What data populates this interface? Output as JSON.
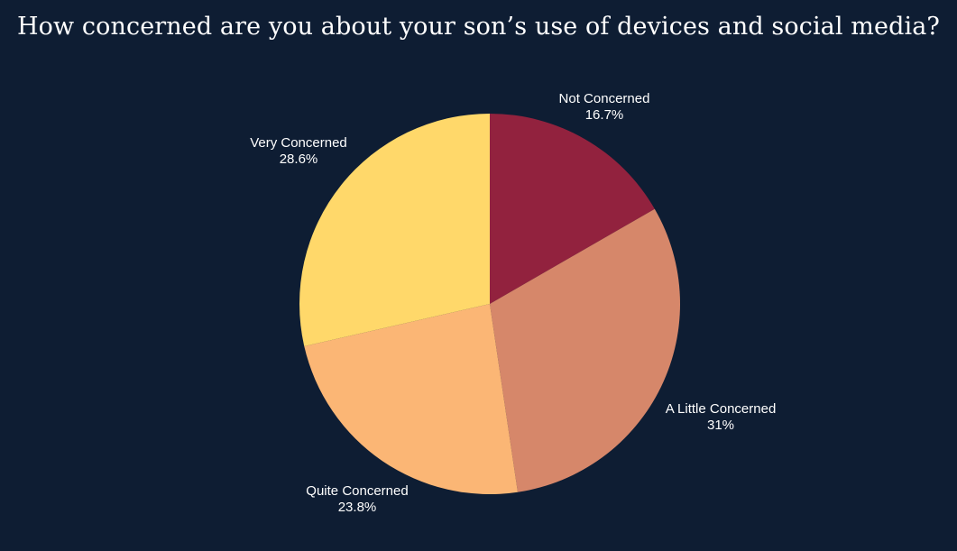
{
  "chart_data": {
    "type": "pie",
    "title": "How concerned are you about your son’s use of devices and social media?",
    "slices": [
      {
        "label": "Not Concerned",
        "value": 16.7,
        "display": "16.7%",
        "color": "#92223e"
      },
      {
        "label": "A Little Concerned",
        "value": 31,
        "display": "31%",
        "color": "#d6876a"
      },
      {
        "label": "Quite Concerned",
        "value": 23.8,
        "display": "23.8%",
        "color": "#fbb675"
      },
      {
        "label": "Very Concerned",
        "value": 28.6,
        "display": "28.6%",
        "color": "#ffd86a"
      }
    ],
    "start_angle": "12 o'clock",
    "direction": "clockwise",
    "legend": "none",
    "labels": "outside"
  },
  "colors": {
    "background": "#0e1d33",
    "text": "#ffffff"
  }
}
